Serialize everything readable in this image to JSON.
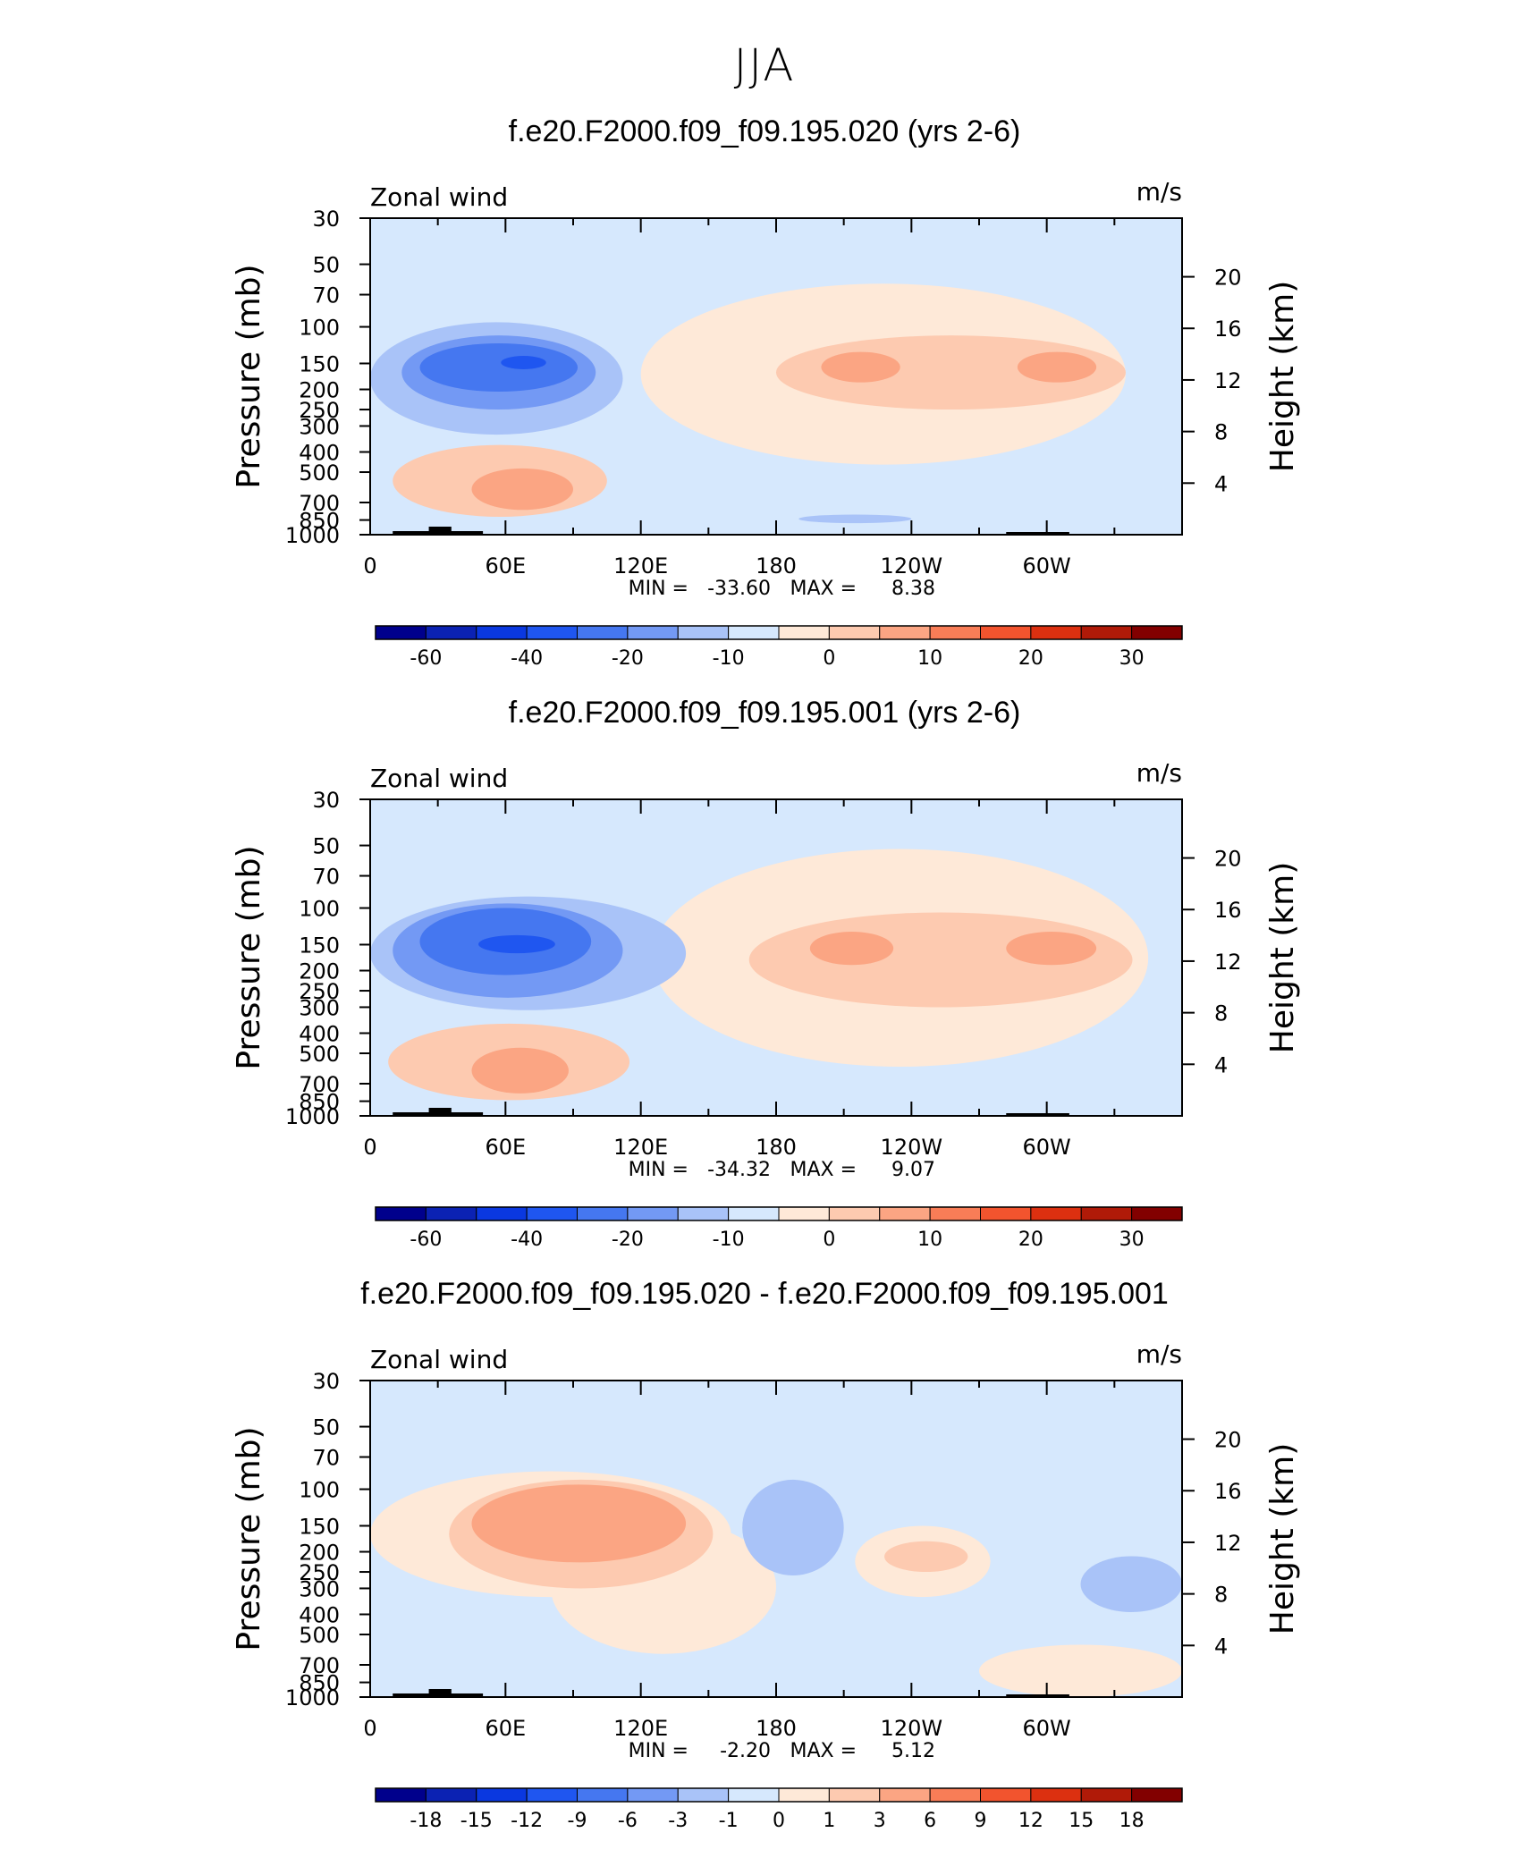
{
  "figure": {
    "title": "JJA"
  },
  "colors": {
    "c_neg60": "#00008c",
    "c_neg50": "#0b22b3",
    "c_neg40": "#0a38e0",
    "c_neg30": "#1f56f0",
    "c_neg20": "#4577f0",
    "c_neg15": "#7399f4",
    "c_neg10": "#a9c3f8",
    "c_neg5": "#d6e8fd",
    "c_0": "#fee9d8",
    "c_5": "#fdcab0",
    "c_10": "#fba583",
    "c_15": "#f87d57",
    "c_20": "#f2542e",
    "c_25": "#dc3010",
    "c_30": "#b01a08",
    "c_35": "#820000"
  },
  "chart_data": [
    {
      "type": "contour",
      "title": "f.e20.F2000.f09_f09.195.020 (yrs 2-6)",
      "left_label": "Zonal wind",
      "right_label": "m/s",
      "ylabel": "Pressure (mb)",
      "ylabel_right": "Height (km)",
      "x_ticks": [
        "0",
        "60E",
        "120E",
        "180",
        "120W",
        "60W"
      ],
      "y_ticks": [
        "30",
        "50",
        "70",
        "100",
        "150",
        "200",
        "250",
        "300",
        "400",
        "500",
        "700",
        "850",
        "1000"
      ],
      "y_right_ticks": [
        "20",
        "16",
        "12",
        "8",
        "4"
      ],
      "stats": {
        "min_label": "MIN =",
        "min": "-33.60",
        "max_label": "MAX =",
        "max": "8.38"
      },
      "colorbar_labels": [
        "-60",
        "-40",
        "-20",
        "-10",
        "0",
        "10",
        "20",
        "30"
      ],
      "xlim": [
        "0",
        "360"
      ],
      "ylim": [
        "1000",
        "30"
      ],
      "regions": [
        {
          "level": "c_neg10",
          "lon": [
            0,
            112
          ],
          "p": [
            95,
            330
          ]
        },
        {
          "level": "c_neg15",
          "lon": [
            14,
            100
          ],
          "p": [
            110,
            250
          ]
        },
        {
          "level": "c_neg20",
          "lon": [
            22,
            92
          ],
          "p": [
            120,
            205
          ]
        },
        {
          "level": "c_neg30",
          "lon": [
            58,
            78
          ],
          "p": [
            138,
            160
          ]
        },
        {
          "level": "c_0",
          "lon": [
            120,
            335
          ],
          "p": [
            62,
            460
          ]
        },
        {
          "level": "c_5",
          "lon": [
            180,
            335
          ],
          "p": [
            110,
            250
          ]
        },
        {
          "level": "c_10",
          "lon": [
            200,
            235
          ],
          "p": [
            132,
            185
          ]
        },
        {
          "level": "c_10",
          "lon": [
            287,
            322
          ],
          "p": [
            132,
            185
          ]
        },
        {
          "level": "c_5",
          "lon": [
            10,
            105
          ],
          "p": [
            370,
            820
          ]
        },
        {
          "level": "c_10",
          "lon": [
            45,
            90
          ],
          "p": [
            480,
            760
          ]
        },
        {
          "level": "c_neg10",
          "lon": [
            190,
            240
          ],
          "p": [
            800,
            880
          ]
        }
      ]
    },
    {
      "type": "contour",
      "title": "f.e20.F2000.f09_f09.195.001 (yrs 2-6)",
      "left_label": "Zonal wind",
      "right_label": "m/s",
      "ylabel": "Pressure (mb)",
      "ylabel_right": "Height (km)",
      "x_ticks": [
        "0",
        "60E",
        "120E",
        "180",
        "120W",
        "60W"
      ],
      "y_ticks": [
        "30",
        "50",
        "70",
        "100",
        "150",
        "200",
        "250",
        "300",
        "400",
        "500",
        "700",
        "850",
        "1000"
      ],
      "y_right_ticks": [
        "20",
        "16",
        "12",
        "8",
        "4"
      ],
      "stats": {
        "min_label": "MIN =",
        "min": "-34.32",
        "max_label": "MAX =",
        "max": "9.07"
      },
      "colorbar_labels": [
        "-60",
        "-40",
        "-20",
        "-10",
        "0",
        "10",
        "20",
        "30"
      ],
      "xlim": [
        "0",
        "360"
      ],
      "ylim": [
        "1000",
        "30"
      ],
      "regions": [
        {
          "level": "c_0",
          "lon": [
            125,
            345
          ],
          "p": [
            52,
            580
          ]
        },
        {
          "level": "c_neg10",
          "lon": [
            0,
            140
          ],
          "p": [
            88,
            310
          ]
        },
        {
          "level": "c_neg15",
          "lon": [
            10,
            112
          ],
          "p": [
            95,
            270
          ]
        },
        {
          "level": "c_neg20",
          "lon": [
            22,
            98
          ],
          "p": [
            100,
            210
          ]
        },
        {
          "level": "c_neg30",
          "lon": [
            48,
            82
          ],
          "p": [
            135,
            165
          ]
        },
        {
          "level": "c_5",
          "lon": [
            168,
            338
          ],
          "p": [
            105,
            300
          ]
        },
        {
          "level": "c_10",
          "lon": [
            195,
            232
          ],
          "p": [
            130,
            188
          ]
        },
        {
          "level": "c_10",
          "lon": [
            282,
            322
          ],
          "p": [
            130,
            188
          ]
        },
        {
          "level": "c_5",
          "lon": [
            8,
            115
          ],
          "p": [
            360,
            840
          ]
        },
        {
          "level": "c_10",
          "lon": [
            45,
            88
          ],
          "p": [
            470,
            780
          ]
        }
      ]
    },
    {
      "type": "contour",
      "title": "f.e20.F2000.f09_f09.195.020 - f.e20.F2000.f09_f09.195.001",
      "left_label": "Zonal wind",
      "right_label": "m/s",
      "ylabel": "Pressure (mb)",
      "ylabel_right": "Height (km)",
      "x_ticks": [
        "0",
        "60E",
        "120E",
        "180",
        "120W",
        "60W"
      ],
      "y_ticks": [
        "30",
        "50",
        "70",
        "100",
        "150",
        "200",
        "250",
        "300",
        "400",
        "500",
        "700",
        "850",
        "1000"
      ],
      "y_right_ticks": [
        "20",
        "16",
        "12",
        "8",
        "4"
      ],
      "stats": {
        "min_label": "MIN =",
        "min": "-2.20",
        "max_label": "MAX =",
        "max": "5.12"
      },
      "colorbar_labels": [
        "-18",
        "-15",
        "-12",
        "-9",
        "-6",
        "-3",
        "-1",
        "0",
        "1",
        "3",
        "6",
        "9",
        "12",
        "15",
        "18"
      ],
      "xlim": [
        "0",
        "360"
      ],
      "ylim": [
        "1000",
        "30"
      ],
      "regions": [
        {
          "level": "c_0",
          "lon": [
            0,
            160
          ],
          "p": [
            82,
            330
          ]
        },
        {
          "level": "c_0",
          "lon": [
            80,
            180
          ],
          "p": [
            140,
            620
          ]
        },
        {
          "level": "c_5",
          "lon": [
            35,
            152
          ],
          "p": [
            90,
            300
          ]
        },
        {
          "level": "c_10",
          "lon": [
            45,
            140
          ],
          "p": [
            95,
            225
          ]
        },
        {
          "level": "c_neg10",
          "lon": [
            165,
            210
          ],
          "p": [
            90,
            260
          ]
        },
        {
          "level": "c_0",
          "lon": [
            215,
            275
          ],
          "p": [
            150,
            330
          ]
        },
        {
          "level": "c_5",
          "lon": [
            228,
            265
          ],
          "p": [
            178,
            250
          ]
        },
        {
          "level": "c_neg10",
          "lon": [
            315,
            360
          ],
          "p": [
            210,
            390
          ]
        },
        {
          "level": "c_0",
          "lon": [
            270,
            360
          ],
          "p": [
            560,
            1000
          ]
        }
      ]
    }
  ]
}
